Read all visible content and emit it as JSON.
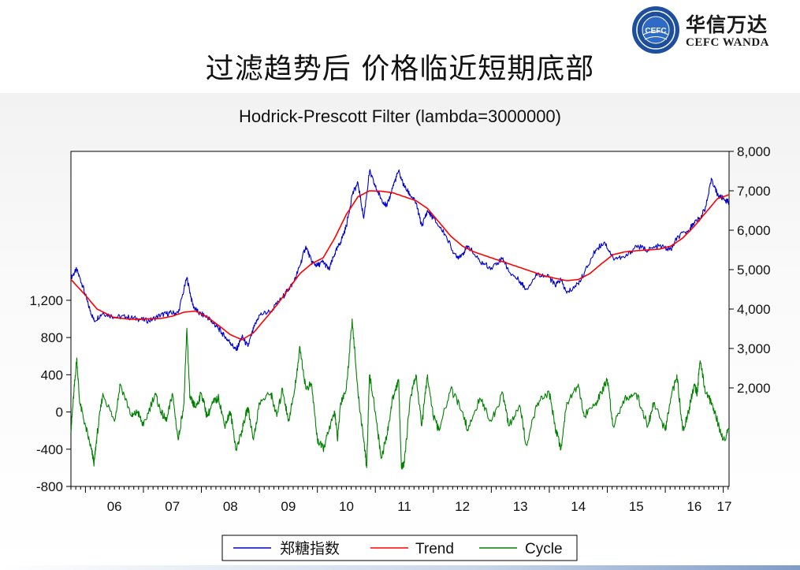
{
  "slide": {
    "title": "过滤趋势后 价格临近短期底部",
    "logo_cn": "华信万达",
    "logo_en": "CEFC WANDA",
    "logo_seal_text": "CEFC"
  },
  "chart_data": {
    "type": "line",
    "title": "Hodrick-Prescott Filter (lambda=3000000)",
    "xlabel": "",
    "ylabel": "",
    "x_start": 2005.75,
    "x_end": 2017.1,
    "x_ticks": [
      "06",
      "07",
      "08",
      "09",
      "10",
      "11",
      "12",
      "13",
      "14",
      "15",
      "16",
      "17"
    ],
    "x_tick_values": [
      2006,
      2007,
      2008,
      2009,
      2010,
      2011,
      2012,
      2013,
      2014,
      2015,
      2016,
      2017
    ],
    "left_axis": {
      "ticks": [
        "1,200",
        "800",
        "400",
        "0",
        "-400",
        "-800"
      ],
      "tick_values": [
        1200,
        800,
        400,
        0,
        -400,
        -800
      ],
      "ylim": [
        -800,
        2800
      ]
    },
    "right_axis": {
      "ticks": [
        "8,000",
        "7,000",
        "6,000",
        "5,000",
        "4,000",
        "3,000",
        "2,000"
      ],
      "tick_values": [
        8000,
        7000,
        6000,
        5000,
        4000,
        3000,
        2000
      ],
      "ylim": [
        -500,
        8000
      ]
    },
    "grid": false,
    "legend": "bottom",
    "series": [
      {
        "name": "郑糖指数",
        "axis": "right",
        "color": "#0000d0",
        "x": [
          2005.75,
          2005.85,
          2005.95,
          2006.05,
          2006.15,
          2006.3,
          2006.5,
          2006.7,
          2006.9,
          2007.1,
          2007.3,
          2007.45,
          2007.6,
          2007.75,
          2007.85,
          2007.95,
          2008.1,
          2008.2,
          2008.3,
          2008.4,
          2008.5,
          2008.6,
          2008.7,
          2008.8,
          2008.9,
          2009.0,
          2009.2,
          2009.4,
          2009.5,
          2009.6,
          2009.7,
          2009.8,
          2009.9,
          2010.0,
          2010.1,
          2010.2,
          2010.3,
          2010.4,
          2010.5,
          2010.6,
          2010.7,
          2010.8,
          2010.9,
          2011.0,
          2011.1,
          2011.2,
          2011.3,
          2011.4,
          2011.5,
          2011.6,
          2011.7,
          2011.8,
          2011.9,
          2012.0,
          2012.2,
          2012.4,
          2012.5,
          2012.6,
          2012.8,
          2013.0,
          2013.2,
          2013.3,
          2013.5,
          2013.6,
          2013.8,
          2014.0,
          2014.1,
          2014.2,
          2014.3,
          2014.5,
          2014.6,
          2014.8,
          2014.95,
          2015.1,
          2015.3,
          2015.5,
          2015.7,
          2015.9,
          2016.1,
          2016.2,
          2016.4,
          2016.5,
          2016.6,
          2016.7,
          2016.8,
          2016.9,
          2017.0,
          2017.1
        ],
        "values": [
          4800,
          5000,
          4600,
          4100,
          3700,
          3900,
          3800,
          3800,
          3750,
          3700,
          3850,
          3900,
          3900,
          4800,
          4100,
          3900,
          3800,
          3650,
          3500,
          3300,
          3150,
          2950,
          3300,
          3050,
          3500,
          3850,
          3950,
          4300,
          4500,
          4700,
          5100,
          5600,
          5200,
          5100,
          5200,
          5000,
          5400,
          5700,
          6100,
          6900,
          7200,
          6300,
          7500,
          7100,
          6800,
          6600,
          7100,
          7500,
          7100,
          6900,
          6700,
          6100,
          6500,
          6300,
          5900,
          5300,
          5400,
          5600,
          5200,
          5050,
          5300,
          4950,
          4700,
          4500,
          4900,
          4800,
          4600,
          4750,
          4400,
          4650,
          4900,
          5500,
          5700,
          5300,
          5300,
          5600,
          5500,
          5600,
          5500,
          5800,
          6000,
          6200,
          6300,
          6600,
          7300,
          6900,
          6800,
          6700
        ]
      },
      {
        "name": "Trend",
        "axis": "right",
        "color": "#ff0000",
        "x": [
          2005.75,
          2006.0,
          2006.2,
          2006.5,
          2006.8,
          2007.0,
          2007.3,
          2007.5,
          2007.7,
          2007.9,
          2008.1,
          2008.3,
          2008.5,
          2008.7,
          2008.9,
          2009.1,
          2009.3,
          2009.5,
          2009.7,
          2009.9,
          2010.1,
          2010.3,
          2010.5,
          2010.7,
          2010.9,
          2011.1,
          2011.3,
          2011.5,
          2011.7,
          2011.9,
          2012.1,
          2012.3,
          2012.5,
          2012.7,
          2012.9,
          2013.1,
          2013.3,
          2013.5,
          2013.7,
          2013.9,
          2014.1,
          2014.3,
          2014.5,
          2014.7,
          2014.9,
          2015.1,
          2015.3,
          2015.5,
          2015.7,
          2015.9,
          2016.1,
          2016.3,
          2016.5,
          2016.7,
          2016.9,
          2017.1
        ],
        "values": [
          4750,
          4350,
          4000,
          3780,
          3740,
          3750,
          3760,
          3820,
          3920,
          3950,
          3800,
          3580,
          3350,
          3220,
          3400,
          3750,
          4100,
          4500,
          4900,
          5150,
          5300,
          5800,
          6400,
          6850,
          7000,
          6990,
          6950,
          6850,
          6750,
          6550,
          6200,
          5850,
          5600,
          5450,
          5350,
          5250,
          5150,
          5050,
          4950,
          4850,
          4780,
          4720,
          4750,
          4900,
          5150,
          5380,
          5450,
          5480,
          5500,
          5520,
          5600,
          5800,
          6100,
          6450,
          6800,
          6900
        ]
      },
      {
        "name": "Cycle",
        "axis": "left",
        "color": "#008000",
        "x": [
          2005.75,
          2005.8,
          2005.85,
          2005.9,
          2006.0,
          2006.1,
          2006.15,
          2006.2,
          2006.3,
          2006.5,
          2006.6,
          2006.8,
          2006.9,
          2007.0,
          2007.2,
          2007.3,
          2007.4,
          2007.5,
          2007.6,
          2007.7,
          2007.75,
          2007.8,
          2007.85,
          2007.9,
          2008.0,
          2008.1,
          2008.2,
          2008.3,
          2008.4,
          2008.5,
          2008.6,
          2008.7,
          2008.8,
          2008.9,
          2009.0,
          2009.2,
          2009.3,
          2009.4,
          2009.5,
          2009.6,
          2009.7,
          2009.8,
          2009.9,
          2010.0,
          2010.1,
          2010.2,
          2010.3,
          2010.35,
          2010.4,
          2010.5,
          2010.6,
          2010.7,
          2010.8,
          2010.85,
          2010.9,
          2011.0,
          2011.1,
          2011.2,
          2011.3,
          2011.4,
          2011.45,
          2011.5,
          2011.6,
          2011.7,
          2011.8,
          2011.9,
          2012.0,
          2012.1,
          2012.3,
          2012.5,
          2012.6,
          2012.8,
          2013.0,
          2013.2,
          2013.3,
          2013.5,
          2013.6,
          2013.8,
          2014.0,
          2014.1,
          2014.2,
          2014.3,
          2014.5,
          2014.6,
          2014.8,
          2014.9,
          2015.0,
          2015.1,
          2015.3,
          2015.5,
          2015.7,
          2015.8,
          2016.0,
          2016.1,
          2016.2,
          2016.3,
          2016.4,
          2016.5,
          2016.55,
          2016.6,
          2016.7,
          2016.8,
          2016.9,
          2017.0,
          2017.1
        ],
        "values": [
          -200,
          200,
          580,
          100,
          -150,
          -400,
          -550,
          -250,
          200,
          -100,
          300,
          -50,
          0,
          -150,
          200,
          0,
          -100,
          200,
          -300,
          100,
          900,
          150,
          100,
          50,
          200,
          -50,
          100,
          150,
          -150,
          0,
          -400,
          -200,
          50,
          -300,
          100,
          200,
          -50,
          250,
          -100,
          200,
          700,
          250,
          300,
          -300,
          -400,
          -200,
          0,
          -300,
          100,
          250,
          1000,
          200,
          -300,
          -600,
          400,
          0,
          -500,
          -250,
          150,
          350,
          -600,
          -550,
          150,
          400,
          -150,
          400,
          -50,
          -200,
          250,
          0,
          -200,
          150,
          -100,
          200,
          -150,
          50,
          -350,
          100,
          200,
          -150,
          -400,
          100,
          300,
          -50,
          100,
          200,
          350,
          -150,
          150,
          200,
          -150,
          100,
          -200,
          150,
          400,
          -200,
          0,
          300,
          200,
          550,
          200,
          100,
          -100,
          -300,
          -200
        ]
      }
    ]
  }
}
